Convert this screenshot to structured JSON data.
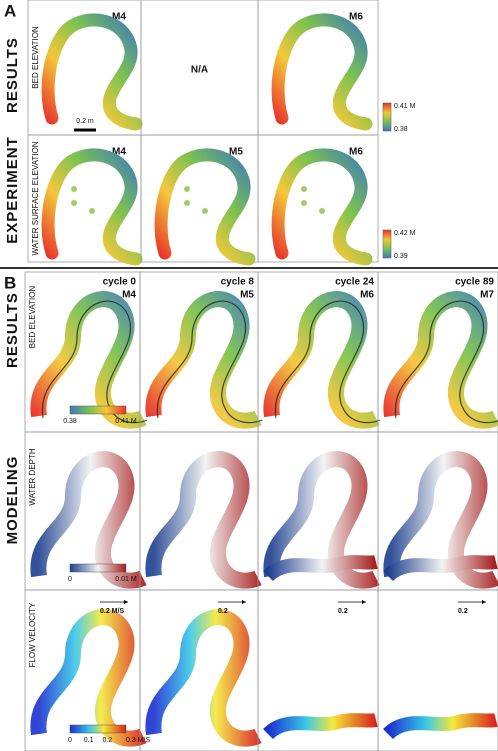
{
  "panel_a": {
    "label": "A",
    "group_label": "EXPERIMENT",
    "results_label": "RESULTS",
    "scale_bar": "0.2 m",
    "rows": [
      {
        "label": "BED ELEVATION",
        "cells": [
          "M4",
          "N/A",
          "M6"
        ],
        "colorbar": [
          "0.41 M",
          "0.38"
        ]
      },
      {
        "label": "WATER SURFACE ELEVATION",
        "cells": [
          "M4",
          "M5",
          "M6"
        ],
        "colorbar": [
          "0.42 M",
          "0.39"
        ]
      }
    ]
  },
  "panel_b": {
    "label": "B",
    "group_label": "MODELING",
    "results_label": "RESULTS",
    "columns": [
      {
        "cycle": "cycle 0",
        "model": "M4"
      },
      {
        "cycle": "cycle 8",
        "model": "M5"
      },
      {
        "cycle": "cycle 24",
        "model": "M6"
      },
      {
        "cycle": "cycle 89",
        "model": "M7"
      }
    ],
    "rows": [
      {
        "label": "BED ELEVATION",
        "colorbar": [
          "0.38",
          "0.41 M"
        ]
      },
      {
        "label": "WATER DEPTH",
        "colorbar": [
          "0",
          "0.01 M"
        ]
      },
      {
        "label": "FLOW VELOCITY",
        "colorbar": [
          "0",
          "0.1",
          "0.2",
          "0.3 M/S"
        ],
        "arrow_labels": [
          "0.2 M/S",
          "0.2",
          "0.2",
          "0.2"
        ]
      }
    ]
  }
}
